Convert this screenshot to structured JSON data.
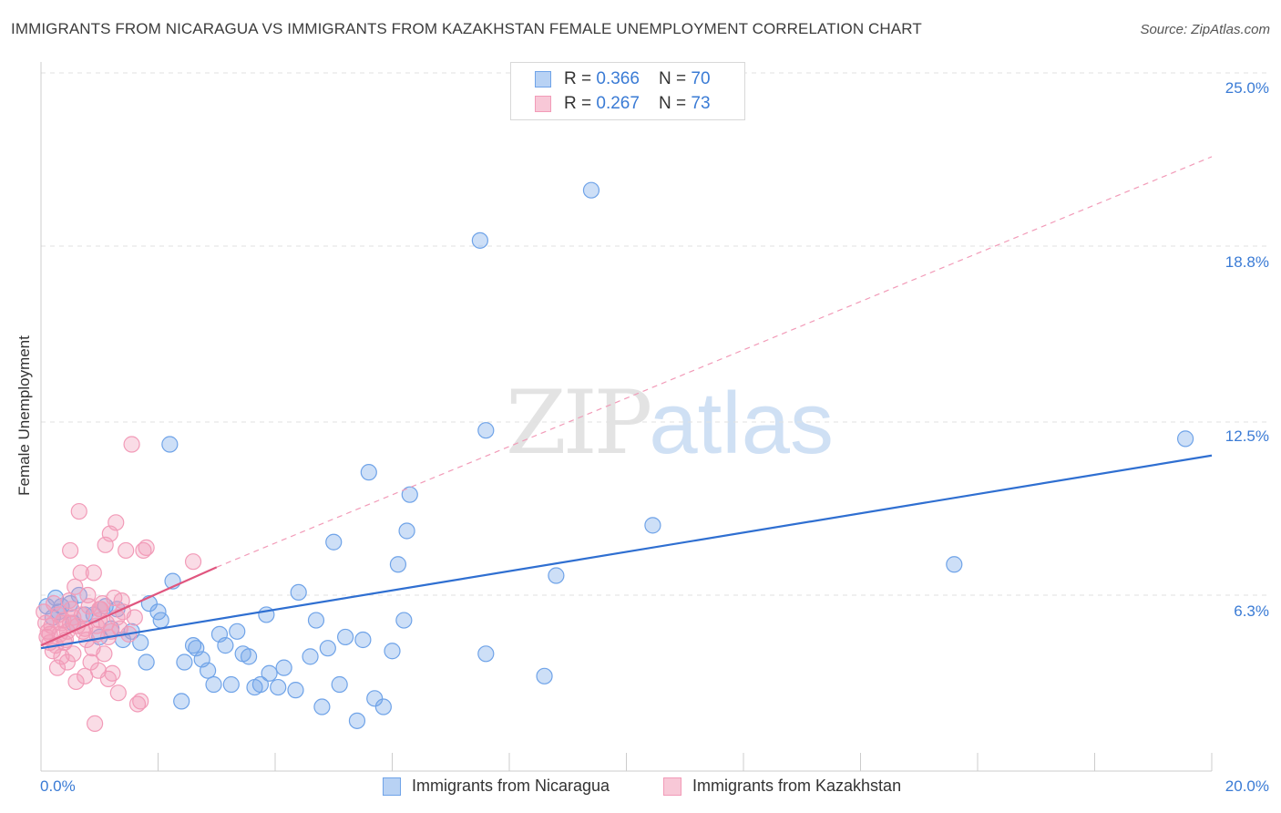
{
  "chart_data": {
    "type": "scatter",
    "title": "IMMIGRANTS FROM NICARAGUA VS IMMIGRANTS FROM KAZAKHSTAN FEMALE UNEMPLOYMENT CORRELATION CHART",
    "source": "Source: ZipAtlas.com",
    "xlabel": "",
    "ylabel": "Female Unemployment",
    "xlim": [
      0,
      20
    ],
    "ylim": [
      0,
      25
    ],
    "x_tick_labels": [
      "0.0%",
      "20.0%"
    ],
    "y_tick_values": [
      6.3,
      12.5,
      18.8,
      25.0
    ],
    "y_tick_labels": [
      "6.3%",
      "12.5%",
      "18.8%",
      "25.0%"
    ],
    "grid": true,
    "legend_position": "top-center",
    "series": [
      {
        "name": "Immigrants from Nicaragua",
        "color": "#6fa3e8",
        "line_color": "#2f6fd1",
        "R": "0.366",
        "N": "70",
        "trend": {
          "x": [
            0,
            20
          ],
          "y": [
            4.4,
            11.3
          ]
        },
        "points": [
          [
            0.1,
            5.9
          ],
          [
            0.2,
            5.5
          ],
          [
            0.25,
            6.2
          ],
          [
            0.3,
            5.7
          ],
          [
            0.35,
            5.9
          ],
          [
            0.5,
            6.0
          ],
          [
            0.55,
            5.3
          ],
          [
            0.65,
            6.3
          ],
          [
            0.75,
            5.6
          ],
          [
            0.9,
            5.6
          ],
          [
            1.0,
            4.8
          ],
          [
            1.1,
            5.9
          ],
          [
            1.2,
            5.1
          ],
          [
            1.3,
            5.8
          ],
          [
            1.4,
            4.7
          ],
          [
            1.55,
            5.0
          ],
          [
            1.7,
            4.6
          ],
          [
            1.8,
            3.9
          ],
          [
            1.85,
            6.0
          ],
          [
            2.0,
            5.7
          ],
          [
            2.05,
            5.4
          ],
          [
            2.2,
            11.7
          ],
          [
            2.25,
            6.8
          ],
          [
            2.4,
            2.5
          ],
          [
            2.45,
            3.9
          ],
          [
            2.6,
            4.5
          ],
          [
            2.65,
            4.4
          ],
          [
            2.75,
            4.0
          ],
          [
            2.85,
            3.6
          ],
          [
            2.95,
            3.1
          ],
          [
            3.05,
            4.9
          ],
          [
            3.15,
            4.5
          ],
          [
            3.25,
            3.1
          ],
          [
            3.35,
            5.0
          ],
          [
            3.45,
            4.2
          ],
          [
            3.55,
            4.1
          ],
          [
            3.65,
            3.0
          ],
          [
            3.75,
            3.1
          ],
          [
            3.85,
            5.6
          ],
          [
            3.9,
            3.5
          ],
          [
            4.05,
            3.0
          ],
          [
            4.15,
            3.7
          ],
          [
            4.35,
            2.9
          ],
          [
            4.4,
            6.4
          ],
          [
            4.6,
            4.1
          ],
          [
            4.7,
            5.4
          ],
          [
            4.8,
            2.3
          ],
          [
            4.9,
            4.4
          ],
          [
            5.0,
            8.2
          ],
          [
            5.1,
            3.1
          ],
          [
            5.2,
            4.8
          ],
          [
            5.4,
            1.8
          ],
          [
            5.5,
            4.7
          ],
          [
            5.6,
            10.7
          ],
          [
            5.7,
            2.6
          ],
          [
            5.85,
            2.3
          ],
          [
            6.0,
            4.3
          ],
          [
            6.1,
            7.4
          ],
          [
            6.2,
            5.4
          ],
          [
            6.25,
            8.6
          ],
          [
            6.3,
            9.9
          ],
          [
            7.5,
            19.0
          ],
          [
            7.6,
            4.2
          ],
          [
            7.6,
            12.2
          ],
          [
            8.6,
            3.4
          ],
          [
            8.8,
            7.0
          ],
          [
            9.4,
            20.8
          ],
          [
            10.45,
            8.8
          ],
          [
            15.6,
            7.4
          ],
          [
            19.55,
            11.9
          ]
        ]
      },
      {
        "name": "Immigrants from Kazakhstan",
        "color": "#f29bb8",
        "line_color": "#e0567f",
        "R": "0.267",
        "N": "73",
        "trend": {
          "x": [
            0,
            3.0
          ],
          "y": [
            4.5,
            7.3
          ],
          "extended": {
            "x": [
              3.0,
              20
            ],
            "y": [
              7.3,
              22.0
            ]
          }
        },
        "points": [
          [
            0.05,
            5.7
          ],
          [
            0.08,
            5.3
          ],
          [
            0.1,
            4.8
          ],
          [
            0.12,
            5.0
          ],
          [
            0.15,
            4.6
          ],
          [
            0.18,
            5.2
          ],
          [
            0.2,
            4.3
          ],
          [
            0.22,
            6.0
          ],
          [
            0.25,
            4.5
          ],
          [
            0.28,
            3.7
          ],
          [
            0.3,
            5.6
          ],
          [
            0.32,
            4.9
          ],
          [
            0.35,
            4.1
          ],
          [
            0.38,
            5.4
          ],
          [
            0.4,
            4.6
          ],
          [
            0.42,
            4.7
          ],
          [
            0.45,
            3.9
          ],
          [
            0.48,
            6.1
          ],
          [
            0.5,
            5.3
          ],
          [
            0.5,
            7.9
          ],
          [
            0.52,
            5.8
          ],
          [
            0.55,
            4.2
          ],
          [
            0.58,
            6.6
          ],
          [
            0.6,
            3.2
          ],
          [
            0.62,
            5.2
          ],
          [
            0.65,
            9.3
          ],
          [
            0.68,
            7.1
          ],
          [
            0.7,
            5.6
          ],
          [
            0.72,
            5.0
          ],
          [
            0.75,
            3.4
          ],
          [
            0.78,
            4.7
          ],
          [
            0.8,
            6.3
          ],
          [
            0.82,
            5.9
          ],
          [
            0.85,
            3.9
          ],
          [
            0.88,
            4.4
          ],
          [
            0.9,
            7.1
          ],
          [
            0.92,
            1.7
          ],
          [
            0.95,
            4.9
          ],
          [
            0.98,
            3.6
          ],
          [
            1.0,
            5.4
          ],
          [
            1.02,
            5.8
          ],
          [
            1.05,
            6.0
          ],
          [
            1.08,
            4.2
          ],
          [
            1.1,
            8.1
          ],
          [
            1.12,
            5.3
          ],
          [
            1.15,
            3.3
          ],
          [
            1.18,
            8.5
          ],
          [
            1.2,
            5.0
          ],
          [
            1.22,
            3.5
          ],
          [
            1.25,
            6.2
          ],
          [
            1.28,
            8.9
          ],
          [
            1.3,
            5.5
          ],
          [
            1.32,
            2.8
          ],
          [
            1.35,
            5.1
          ],
          [
            1.38,
            6.1
          ],
          [
            1.4,
            5.7
          ],
          [
            1.45,
            7.9
          ],
          [
            1.5,
            4.9
          ],
          [
            1.55,
            11.7
          ],
          [
            1.6,
            5.5
          ],
          [
            1.65,
            2.4
          ],
          [
            1.7,
            2.5
          ],
          [
            1.75,
            7.9
          ],
          [
            1.8,
            8.0
          ],
          [
            0.15,
            4.9
          ],
          [
            0.35,
            5.3
          ],
          [
            0.55,
            5.5
          ],
          [
            0.75,
            5.1
          ],
          [
            0.95,
            5.2
          ],
          [
            1.15,
            4.8
          ],
          [
            2.6,
            7.5
          ],
          [
            1.0,
            5.8
          ],
          [
            0.45,
            5.0
          ]
        ]
      }
    ]
  },
  "legend": {
    "rows": [
      {
        "r_label": "R = ",
        "r_value": "0.366",
        "n_label": "N = ",
        "n_value": "70"
      },
      {
        "r_label": "R = ",
        "r_value": "0.267",
        "n_label": "N = ",
        "n_value": "73"
      }
    ]
  },
  "watermark": {
    "zip": "ZIP",
    "atlas": "atlas"
  }
}
